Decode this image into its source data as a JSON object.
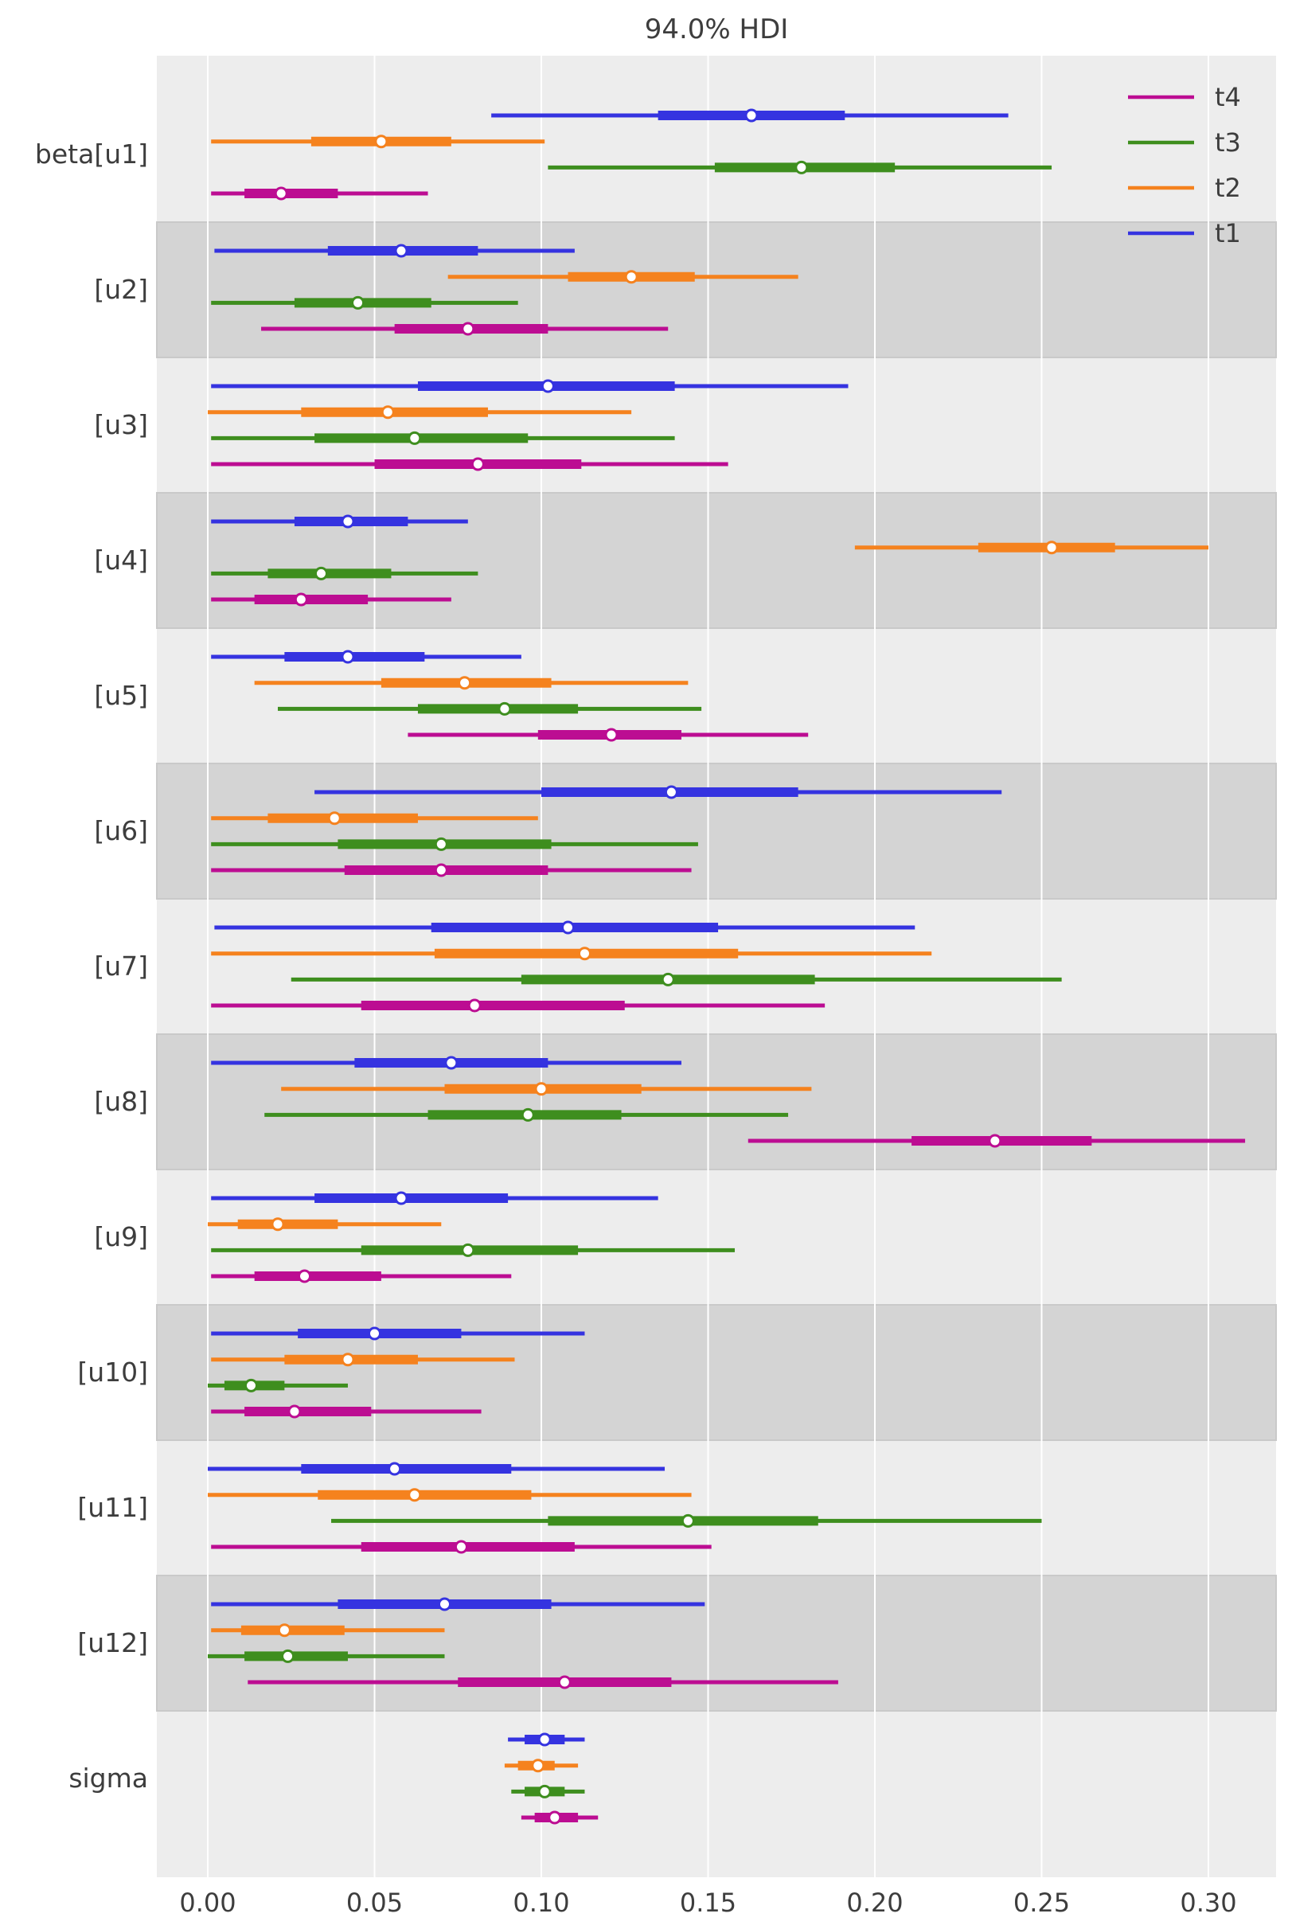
{
  "title": "94.0% HDI",
  "colors": {
    "t1": "#3533e0",
    "t2": "#f5821e",
    "t3": "#3e8e1e",
    "t4": "#bc0d92",
    "plot_bg": "#ededed",
    "band_dark": "#d4d4d4",
    "band_edge": "#c9c9c9",
    "grid": "#ffffff",
    "text": "#3d3d3d",
    "figure_bg": "#ffffff"
  },
  "chart_data": {
    "type": "forest",
    "title": "94.0% HDI",
    "x_tick_labels": [
      "0.00",
      "0.05",
      "0.10",
      "0.15",
      "0.20",
      "0.25",
      "0.30"
    ],
    "x_tick_values": [
      0.0,
      0.05,
      0.1,
      0.15,
      0.2,
      0.25,
      0.3
    ],
    "xlim": [
      -0.0153,
      0.3203
    ],
    "grid": "vertical white gridlines",
    "background": "alternating gray bands per parameter",
    "legend_position": "upper-right",
    "legend": [
      {
        "label": "t4",
        "color": "#bc0d92"
      },
      {
        "label": "t3",
        "color": "#3e8e1e"
      },
      {
        "label": "t2",
        "color": "#f5821e"
      },
      {
        "label": "t1",
        "color": "#3533e0"
      }
    ],
    "chain_draw_order": [
      "t1",
      "t2",
      "t3",
      "t4"
    ],
    "value_keys": [
      "hdi_low",
      "quartile_low",
      "median",
      "quartile_high",
      "hdi_high"
    ],
    "rows": [
      {
        "label": "beta[u1]",
        "chains": [
          {
            "chain": "t1",
            "v": [
              0.085,
              0.135,
              0.163,
              0.191,
              0.24
            ]
          },
          {
            "chain": "t2",
            "v": [
              0.001,
              0.031,
              0.052,
              0.073,
              0.101
            ]
          },
          {
            "chain": "t3",
            "v": [
              0.102,
              0.152,
              0.178,
              0.206,
              0.253
            ]
          },
          {
            "chain": "t4",
            "v": [
              0.001,
              0.011,
              0.022,
              0.039,
              0.066
            ]
          }
        ]
      },
      {
        "label": "[u2]",
        "chains": [
          {
            "chain": "t1",
            "v": [
              0.002,
              0.036,
              0.058,
              0.081,
              0.11
            ]
          },
          {
            "chain": "t2",
            "v": [
              0.072,
              0.108,
              0.127,
              0.146,
              0.177
            ]
          },
          {
            "chain": "t3",
            "v": [
              0.001,
              0.026,
              0.045,
              0.067,
              0.093
            ]
          },
          {
            "chain": "t4",
            "v": [
              0.016,
              0.056,
              0.078,
              0.102,
              0.138
            ]
          }
        ]
      },
      {
        "label": "[u3]",
        "chains": [
          {
            "chain": "t1",
            "v": [
              0.001,
              0.063,
              0.102,
              0.14,
              0.192
            ]
          },
          {
            "chain": "t2",
            "v": [
              0.0,
              0.028,
              0.054,
              0.084,
              0.127
            ]
          },
          {
            "chain": "t3",
            "v": [
              0.001,
              0.032,
              0.062,
              0.096,
              0.14
            ]
          },
          {
            "chain": "t4",
            "v": [
              0.001,
              0.05,
              0.081,
              0.112,
              0.156
            ]
          }
        ]
      },
      {
        "label": "[u4]",
        "chains": [
          {
            "chain": "t1",
            "v": [
              0.001,
              0.026,
              0.042,
              0.06,
              0.078
            ]
          },
          {
            "chain": "t2",
            "v": [
              0.194,
              0.231,
              0.253,
              0.272,
              0.3
            ]
          },
          {
            "chain": "t3",
            "v": [
              0.001,
              0.018,
              0.034,
              0.055,
              0.081
            ]
          },
          {
            "chain": "t4",
            "v": [
              0.001,
              0.014,
              0.028,
              0.048,
              0.073
            ]
          }
        ]
      },
      {
        "label": "[u5]",
        "chains": [
          {
            "chain": "t1",
            "v": [
              0.001,
              0.023,
              0.042,
              0.065,
              0.094
            ]
          },
          {
            "chain": "t2",
            "v": [
              0.014,
              0.052,
              0.077,
              0.103,
              0.144
            ]
          },
          {
            "chain": "t3",
            "v": [
              0.021,
              0.063,
              0.089,
              0.111,
              0.148
            ]
          },
          {
            "chain": "t4",
            "v": [
              0.06,
              0.099,
              0.121,
              0.142,
              0.18
            ]
          }
        ]
      },
      {
        "label": "[u6]",
        "chains": [
          {
            "chain": "t1",
            "v": [
              0.032,
              0.1,
              0.139,
              0.177,
              0.238
            ]
          },
          {
            "chain": "t2",
            "v": [
              0.001,
              0.018,
              0.038,
              0.063,
              0.099
            ]
          },
          {
            "chain": "t3",
            "v": [
              0.001,
              0.039,
              0.07,
              0.103,
              0.147
            ]
          },
          {
            "chain": "t4",
            "v": [
              0.001,
              0.041,
              0.07,
              0.102,
              0.145
            ]
          }
        ]
      },
      {
        "label": "[u7]",
        "chains": [
          {
            "chain": "t1",
            "v": [
              0.002,
              0.067,
              0.108,
              0.153,
              0.212
            ]
          },
          {
            "chain": "t2",
            "v": [
              0.001,
              0.068,
              0.113,
              0.159,
              0.217
            ]
          },
          {
            "chain": "t3",
            "v": [
              0.025,
              0.094,
              0.138,
              0.182,
              0.256
            ]
          },
          {
            "chain": "t4",
            "v": [
              0.001,
              0.046,
              0.08,
              0.125,
              0.185
            ]
          }
        ]
      },
      {
        "label": "[u8]",
        "chains": [
          {
            "chain": "t1",
            "v": [
              0.001,
              0.044,
              0.073,
              0.102,
              0.142
            ]
          },
          {
            "chain": "t2",
            "v": [
              0.022,
              0.071,
              0.1,
              0.13,
              0.181
            ]
          },
          {
            "chain": "t3",
            "v": [
              0.017,
              0.066,
              0.096,
              0.124,
              0.174
            ]
          },
          {
            "chain": "t4",
            "v": [
              0.162,
              0.211,
              0.236,
              0.265,
              0.311
            ]
          }
        ]
      },
      {
        "label": "[u9]",
        "chains": [
          {
            "chain": "t1",
            "v": [
              0.001,
              0.032,
              0.058,
              0.09,
              0.135
            ]
          },
          {
            "chain": "t2",
            "v": [
              0.0,
              0.009,
              0.021,
              0.039,
              0.07
            ]
          },
          {
            "chain": "t3",
            "v": [
              0.001,
              0.046,
              0.078,
              0.111,
              0.158
            ]
          },
          {
            "chain": "t4",
            "v": [
              0.001,
              0.014,
              0.029,
              0.052,
              0.091
            ]
          }
        ]
      },
      {
        "label": "[u10]",
        "chains": [
          {
            "chain": "t1",
            "v": [
              0.001,
              0.027,
              0.05,
              0.076,
              0.113
            ]
          },
          {
            "chain": "t2",
            "v": [
              0.001,
              0.023,
              0.042,
              0.063,
              0.092
            ]
          },
          {
            "chain": "t3",
            "v": [
              0.0,
              0.005,
              0.013,
              0.023,
              0.042
            ]
          },
          {
            "chain": "t4",
            "v": [
              0.001,
              0.011,
              0.026,
              0.049,
              0.082
            ]
          }
        ]
      },
      {
        "label": "[u11]",
        "chains": [
          {
            "chain": "t1",
            "v": [
              0.0,
              0.028,
              0.056,
              0.091,
              0.137
            ]
          },
          {
            "chain": "t2",
            "v": [
              0.0,
              0.033,
              0.062,
              0.097,
              0.145
            ]
          },
          {
            "chain": "t3",
            "v": [
              0.037,
              0.102,
              0.144,
              0.183,
              0.25
            ]
          },
          {
            "chain": "t4",
            "v": [
              0.001,
              0.046,
              0.076,
              0.11,
              0.151
            ]
          }
        ]
      },
      {
        "label": "[u12]",
        "chains": [
          {
            "chain": "t1",
            "v": [
              0.001,
              0.039,
              0.071,
              0.103,
              0.149
            ]
          },
          {
            "chain": "t2",
            "v": [
              0.001,
              0.01,
              0.023,
              0.041,
              0.071
            ]
          },
          {
            "chain": "t3",
            "v": [
              0.0,
              0.011,
              0.024,
              0.042,
              0.071
            ]
          },
          {
            "chain": "t4",
            "v": [
              0.012,
              0.075,
              0.107,
              0.139,
              0.189
            ]
          }
        ]
      },
      {
        "label": "sigma",
        "chains": [
          {
            "chain": "t1",
            "v": [
              0.09,
              0.095,
              0.101,
              0.107,
              0.113
            ]
          },
          {
            "chain": "t2",
            "v": [
              0.089,
              0.093,
              0.099,
              0.104,
              0.111
            ]
          },
          {
            "chain": "t3",
            "v": [
              0.091,
              0.095,
              0.101,
              0.107,
              0.113
            ]
          },
          {
            "chain": "t4",
            "v": [
              0.094,
              0.098,
              0.104,
              0.111,
              0.117
            ]
          }
        ]
      }
    ]
  }
}
